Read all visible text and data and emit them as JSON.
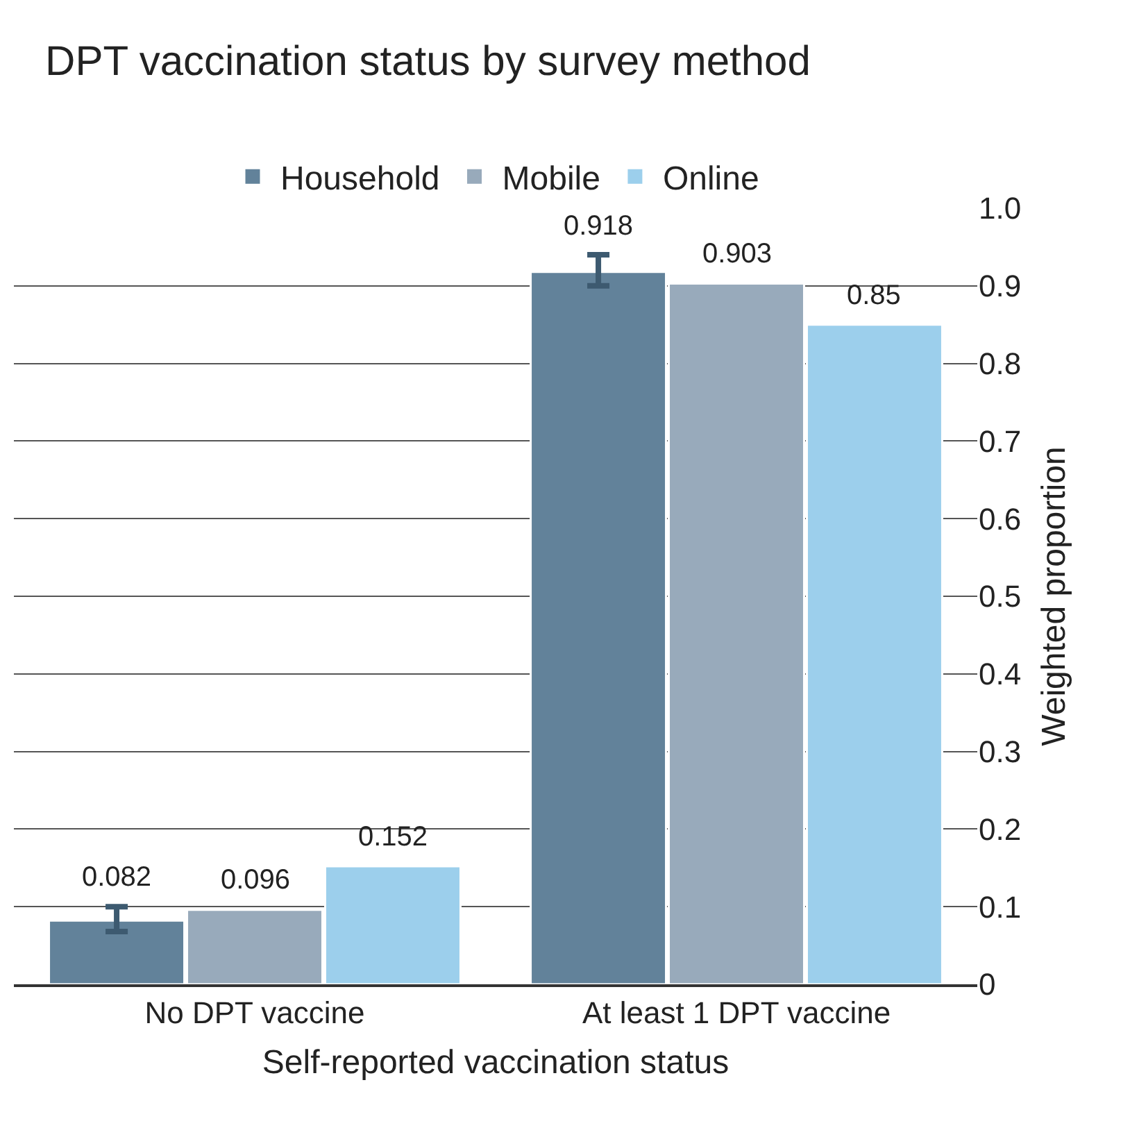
{
  "chart_data": {
    "type": "bar",
    "title": "DPT vaccination status by survey method",
    "xlabel": "Self-reported vaccination status",
    "ylabel": "Weighted proportion",
    "categories": [
      "No DPT vaccine",
      "At least 1 DPT vaccine"
    ],
    "series": [
      {
        "name": "Household",
        "color": "#62829a",
        "values": [
          0.082,
          0.918
        ],
        "errors": [
          [
            0.068,
            0.1
          ],
          [
            0.9,
            0.94
          ]
        ]
      },
      {
        "name": "Mobile",
        "color": "#98aabb",
        "values": [
          0.096,
          0.903
        ]
      },
      {
        "name": "Online",
        "color": "#9ccfec",
        "values": [
          0.152,
          0.85
        ]
      }
    ],
    "ylim": [
      0,
      1.0
    ],
    "yticks": [
      0,
      0.1,
      0.2,
      0.3,
      0.4,
      0.5,
      0.6,
      0.7,
      0.8,
      0.9,
      {
        "value": 1.0,
        "label": "1.0"
      }
    ],
    "grid": "y",
    "legend": "top",
    "data_labels": true
  }
}
